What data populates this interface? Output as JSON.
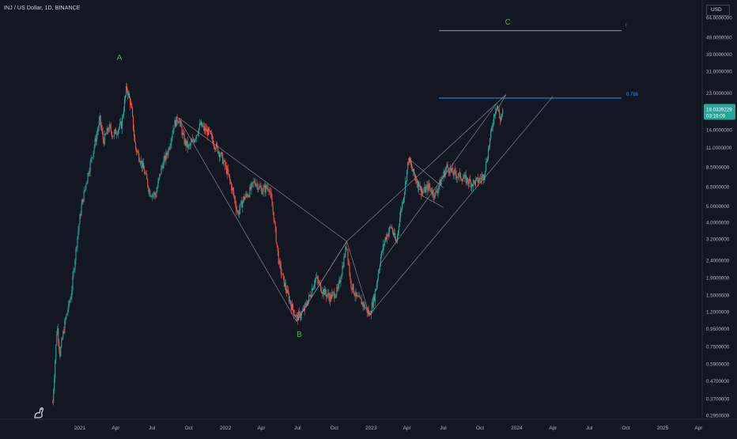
{
  "header": {
    "symbol_title": "INJ / US Dollar, 1D, BINANCE",
    "currency": "USD"
  },
  "icons": {
    "logo": "tradingview-logo-icon"
  },
  "colors": {
    "background": "#131722",
    "up": "#26a69a",
    "down": "#ef5350",
    "wave_label": "#4caf50",
    "fib_line": "#2196f3",
    "grid_line": "#787b86",
    "trend_line": "#9598a1"
  },
  "chart_data": {
    "type": "candlestick",
    "title": "INJ / US Dollar, 1D, BINANCE",
    "y_scale": "log",
    "y_tick_labels": [
      "64.0000000",
      "49.0000000",
      "39.0000000",
      "31.0000000",
      "23.0000000",
      "18.0339229",
      "14.0000000",
      "11.0000000",
      "8.5000000",
      "6.5000000",
      "5.0000000",
      "4.0000000",
      "3.2000000",
      "2.4000000",
      "1.9000000",
      "1.5000000",
      "1.2000000",
      "0.9500000",
      "0.7500000",
      "0.5900000",
      "0.4700000",
      "0.3700000",
      "0.2950000"
    ],
    "y_ticks": [
      64,
      49,
      39,
      31,
      23,
      14,
      11,
      8.5,
      6.5,
      5,
      4,
      3.2,
      2.4,
      1.9,
      1.5,
      1.2,
      0.95,
      0.75,
      0.59,
      0.47,
      0.37,
      0.295
    ],
    "x_tick_labels": [
      "2021",
      "Apr",
      "Jul",
      "Oct",
      "2022",
      "Apr",
      "Jul",
      "Oct",
      "2023",
      "Apr",
      "Jul",
      "Oct",
      "2024",
      "Apr",
      "Jul",
      "Oct",
      "2025",
      "Apr"
    ],
    "x_ticks": [
      "2021-01-01",
      "2021-04-01",
      "2021-07-01",
      "2021-10-01",
      "2022-01-01",
      "2022-04-01",
      "2022-07-01",
      "2022-10-01",
      "2023-01-01",
      "2023-04-01",
      "2023-07-01",
      "2023-10-01",
      "2024-01-01",
      "2024-04-01",
      "2024-07-01",
      "2024-10-01",
      "2025-01-01",
      "2025-04-01"
    ],
    "x_range": [
      "2020-10-24",
      "2025-04-05"
    ],
    "last_price": {
      "value": 18.0339229,
      "label": "18.0339229",
      "countdown": "03:16:09"
    },
    "price_path": [
      [
        "2020-10-25",
        0.35
      ],
      [
        "2020-11-05",
        1.0
      ],
      [
        "2020-11-12",
        0.68
      ],
      [
        "2020-11-25",
        1.05
      ],
      [
        "2020-12-10",
        1.5
      ],
      [
        "2020-12-25",
        3.2
      ],
      [
        "2021-01-05",
        5.0
      ],
      [
        "2021-01-20",
        7.5
      ],
      [
        "2021-02-05",
        11.0
      ],
      [
        "2021-02-20",
        16.0
      ],
      [
        "2021-03-01",
        12.0
      ],
      [
        "2021-03-15",
        14.5
      ],
      [
        "2021-03-25",
        13.0
      ],
      [
        "2021-04-05",
        14.0
      ],
      [
        "2021-04-15",
        15.0
      ],
      [
        "2021-04-25",
        22.0
      ],
      [
        "2021-04-28",
        25.0
      ],
      [
        "2021-05-10",
        19.0
      ],
      [
        "2021-05-20",
        11.0
      ],
      [
        "2021-06-01",
        9.5
      ],
      [
        "2021-06-15",
        7.5
      ],
      [
        "2021-06-25",
        6.0
      ],
      [
        "2021-07-10",
        5.8
      ],
      [
        "2021-07-25",
        8.5
      ],
      [
        "2021-08-10",
        10.5
      ],
      [
        "2021-08-25",
        15.0
      ],
      [
        "2021-09-05",
        16.5
      ],
      [
        "2021-09-20",
        12.0
      ],
      [
        "2021-10-01",
        11.0
      ],
      [
        "2021-10-15",
        12.5
      ],
      [
        "2021-10-30",
        15.0
      ],
      [
        "2021-11-10",
        14.0
      ],
      [
        "2021-11-20",
        13.5
      ],
      [
        "2021-12-05",
        11.5
      ],
      [
        "2021-12-20",
        10.0
      ],
      [
        "2022-01-05",
        8.0
      ],
      [
        "2022-01-20",
        6.0
      ],
      [
        "2022-02-01",
        4.5
      ],
      [
        "2022-02-15",
        5.5
      ],
      [
        "2022-03-01",
        6.0
      ],
      [
        "2022-03-15",
        7.0
      ],
      [
        "2022-04-01",
        6.2
      ],
      [
        "2022-04-20",
        6.5
      ],
      [
        "2022-05-01",
        4.5
      ],
      [
        "2022-05-15",
        2.3
      ],
      [
        "2022-05-30",
        1.7
      ],
      [
        "2022-06-15",
        1.3
      ],
      [
        "2022-06-28",
        1.1
      ],
      [
        "2022-07-15",
        1.2
      ],
      [
        "2022-08-01",
        1.5
      ],
      [
        "2022-08-15",
        1.9
      ],
      [
        "2022-09-01",
        1.6
      ],
      [
        "2022-09-20",
        1.45
      ],
      [
        "2022-10-10",
        1.6
      ],
      [
        "2022-11-01",
        3.0
      ],
      [
        "2022-11-10",
        1.8
      ],
      [
        "2022-11-25",
        1.45
      ],
      [
        "2022-12-10",
        1.35
      ],
      [
        "2022-12-28",
        1.15
      ],
      [
        "2023-01-10",
        1.5
      ],
      [
        "2023-01-25",
        2.5
      ],
      [
        "2023-02-05",
        3.2
      ],
      [
        "2023-02-20",
        3.8
      ],
      [
        "2023-03-05",
        3.0
      ],
      [
        "2023-03-15",
        4.5
      ],
      [
        "2023-03-25",
        6.0
      ],
      [
        "2023-04-05",
        9.5
      ],
      [
        "2023-04-15",
        8.0
      ],
      [
        "2023-04-25",
        7.0
      ],
      [
        "2023-05-10",
        6.0
      ],
      [
        "2023-05-25",
        6.5
      ],
      [
        "2023-06-10",
        5.8
      ],
      [
        "2023-06-25",
        7.0
      ],
      [
        "2023-07-10",
        8.5
      ],
      [
        "2023-07-25",
        7.8
      ],
      [
        "2023-08-10",
        7.5
      ],
      [
        "2023-08-25",
        7.2
      ],
      [
        "2023-09-10",
        6.8
      ],
      [
        "2023-09-25",
        7.0
      ],
      [
        "2023-10-10",
        7.5
      ],
      [
        "2023-10-20",
        10.0
      ],
      [
        "2023-10-30",
        14.0
      ],
      [
        "2023-11-05",
        17.0
      ],
      [
        "2023-11-12",
        20.0
      ],
      [
        "2023-11-20",
        16.0
      ],
      [
        "2023-11-28",
        18.0339229
      ]
    ],
    "annotations": [
      {
        "label": "A",
        "date": "2021-04-10",
        "price": 36
      },
      {
        "label": "B",
        "date": "2022-07-05",
        "price": 0.85
      },
      {
        "label": "C",
        "date": "2023-12-10",
        "price": 58
      }
    ],
    "horizontal_lines": [
      {
        "label": "",
        "price": 53.5,
        "from": "2023-06-20",
        "to": "2024-09-20",
        "color": "#9598a1",
        "end_mark": "!"
      },
      {
        "label": "0.786",
        "price": 21.5,
        "from": "2023-06-20",
        "to": "2024-09-20",
        "color": "#2196f3"
      }
    ],
    "trend_lines": [
      [
        [
          "2021-09-05",
          16.5
        ],
        [
          "2022-06-28",
          1.05
        ],
        [
          "2022-11-01",
          3.1
        ]
      ],
      [
        [
          "2021-09-05",
          16.5
        ],
        [
          "2022-11-01",
          3.1
        ]
      ],
      [
        [
          "2022-06-28",
          1.05
        ],
        [
          "2022-11-01",
          3.1
        ],
        [
          "2022-12-28",
          1.15
        ]
      ],
      [
        [
          "2022-11-01",
          3.1
        ],
        [
          "2023-12-05",
          22.5
        ]
      ],
      [
        [
          "2022-12-28",
          1.15
        ],
        [
          "2024-04-01",
          22.0
        ]
      ],
      [
        [
          "2023-01-25",
          2.3
        ],
        [
          "2023-11-12",
          20.0
        ]
      ],
      [
        [
          "2023-04-05",
          9.5
        ],
        [
          "2023-07-01",
          6.4
        ]
      ],
      [
        [
          "2023-05-01",
          5.9
        ],
        [
          "2023-07-01",
          4.9
        ]
      ],
      [
        [
          "2023-04-05",
          9.5
        ],
        [
          "2023-05-10",
          6.0
        ]
      ],
      [
        [
          "2023-11-05",
          17.0
        ],
        [
          "2023-12-05",
          22.5
        ]
      ]
    ]
  }
}
